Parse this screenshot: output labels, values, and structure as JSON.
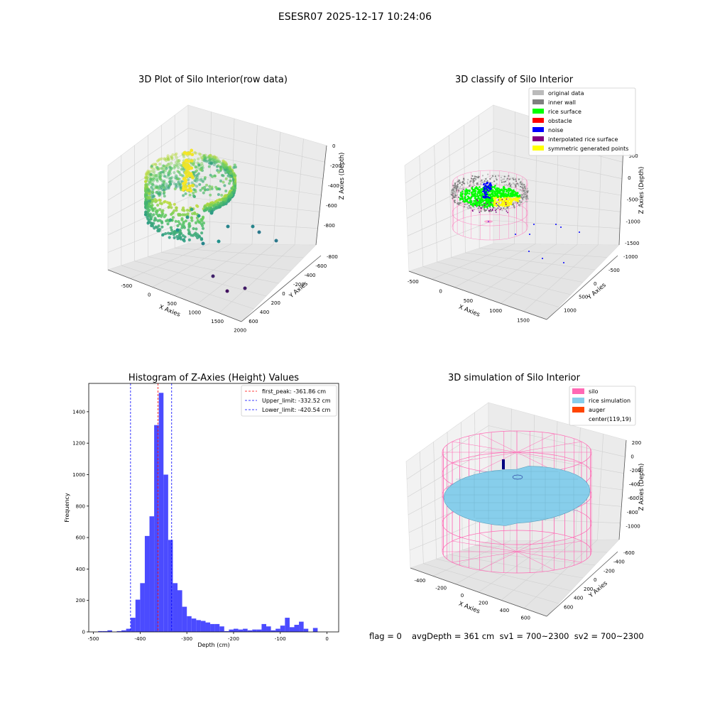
{
  "suptitle": "ESESR07 2025-12-17 10:24:06",
  "footer": {
    "flag": "flag = 0",
    "stats": "avgDepth = 361 cm  sv1 = 700~2300  sv2 = 700~2300"
  },
  "colors": {
    "hist_bar": "#4b4bff",
    "peak_line": "#ff0000",
    "limit_line": "#0000ff",
    "silo_wire": "#ff69b4",
    "rice_surface": "#87ceeb",
    "original_data": "#bbbbbb",
    "inner_wall": "#808080",
    "rice_green": "#00ff00",
    "obstacle": "#ff0000",
    "noise": "#0000ff",
    "interpolated": "#800080",
    "symmetric": "#ffff00",
    "auger": "#ff4500"
  },
  "chart_data": [
    {
      "type": "scatter",
      "title": "3D Plot of Silo Interior(row data)",
      "xlabel": "X Axies",
      "ylabel": "Y Axies",
      "zlabel": "Z Axies (Depth)",
      "x_ticks": [
        "-500",
        "0",
        "500",
        "1000",
        "1500",
        "2000"
      ],
      "y_ticks": [
        "-800",
        "-600",
        "-400",
        "-200",
        "0",
        "200",
        "400",
        "600"
      ],
      "z_ticks": [
        "0",
        "-200",
        "-400",
        "-600",
        "-800"
      ],
      "xlim": [
        -600,
        2000
      ],
      "ylim": [
        -850,
        700
      ],
      "zlim": [
        -900,
        50
      ],
      "colormap": "viridis"
    },
    {
      "type": "scatter",
      "title": "3D classify of Silo Interior",
      "xlabel": "X Axies",
      "ylabel": "Y Axies",
      "zlabel": "Z Axies (Depth)",
      "x_ticks": [
        "-500",
        "0",
        "500",
        "1000",
        "1500"
      ],
      "y_ticks": [
        "-1000",
        "-500",
        "0",
        "500",
        "1000"
      ],
      "z_ticks": [
        "500",
        "0",
        "-500",
        "-1000",
        "-1500"
      ],
      "legend": [
        {
          "label": "original data",
          "color": "#bbbbbb"
        },
        {
          "label": "inner wall",
          "color": "#808080"
        },
        {
          "label": "rice surface",
          "color": "#00ff00"
        },
        {
          "label": "obstacle",
          "color": "#ff0000"
        },
        {
          "label": "noise",
          "color": "#0000ff"
        },
        {
          "label": "interpolated rice surface",
          "color": "#800080"
        },
        {
          "label": "symmetric generated points",
          "color": "#ffff00"
        }
      ],
      "legend_position": "upper right"
    },
    {
      "type": "bar",
      "title": "Histogram of Z-Axies (Height) Values",
      "xlabel": "Depth (cm)",
      "ylabel": "Frequency",
      "xlim": [
        -510,
        25
      ],
      "ylim": [
        0,
        1580
      ],
      "x_ticks": [
        -500,
        -400,
        -300,
        -200,
        -100,
        0
      ],
      "y_ticks": [
        0,
        200,
        400,
        600,
        800,
        1000,
        1200,
        1400
      ],
      "bin_edges_start": -490,
      "bin_width": 10,
      "values": [
        5,
        5,
        10,
        0,
        5,
        10,
        20,
        90,
        205,
        310,
        610,
        735,
        1315,
        1520,
        1000,
        585,
        310,
        265,
        160,
        100,
        85,
        75,
        70,
        60,
        50,
        50,
        35,
        5,
        15,
        20,
        15,
        20,
        10,
        15,
        15,
        50,
        35,
        10,
        20,
        40,
        90,
        30,
        45,
        65,
        20,
        0,
        25
      ],
      "vlines": [
        {
          "label": "first_peak: -361.86 cm",
          "x": -361.86,
          "color": "#ff0000"
        },
        {
          "label": "Upper_limit: -332.52 cm",
          "x": -332.52,
          "color": "#0000ff"
        },
        {
          "label": "Lower_limit: -420.54 cm",
          "x": -420.54,
          "color": "#0000ff"
        }
      ],
      "legend_position": "upper right"
    },
    {
      "type": "surface",
      "title": "3D simulation of Silo Interior",
      "xlabel": "X Axies",
      "ylabel": "Y Axies",
      "zlabel": "Z Axies (Depth)",
      "x_ticks": [
        "-400",
        "-200",
        "0",
        "200",
        "400",
        "600"
      ],
      "y_ticks": [
        "-600",
        "-400",
        "-200",
        "0",
        "200",
        "400",
        "600"
      ],
      "z_ticks": [
        "200",
        "0",
        "-200",
        "-400",
        "-600",
        "-800",
        "-1000"
      ],
      "legend": [
        {
          "label": "silo",
          "color": "#ff69b4"
        },
        {
          "label": "rice simulation",
          "color": "#87ceeb"
        },
        {
          "label": "auger",
          "color": "#ff4500"
        },
        {
          "label": "center(119,19)",
          "color": ""
        }
      ],
      "legend_position": "upper right"
    }
  ]
}
